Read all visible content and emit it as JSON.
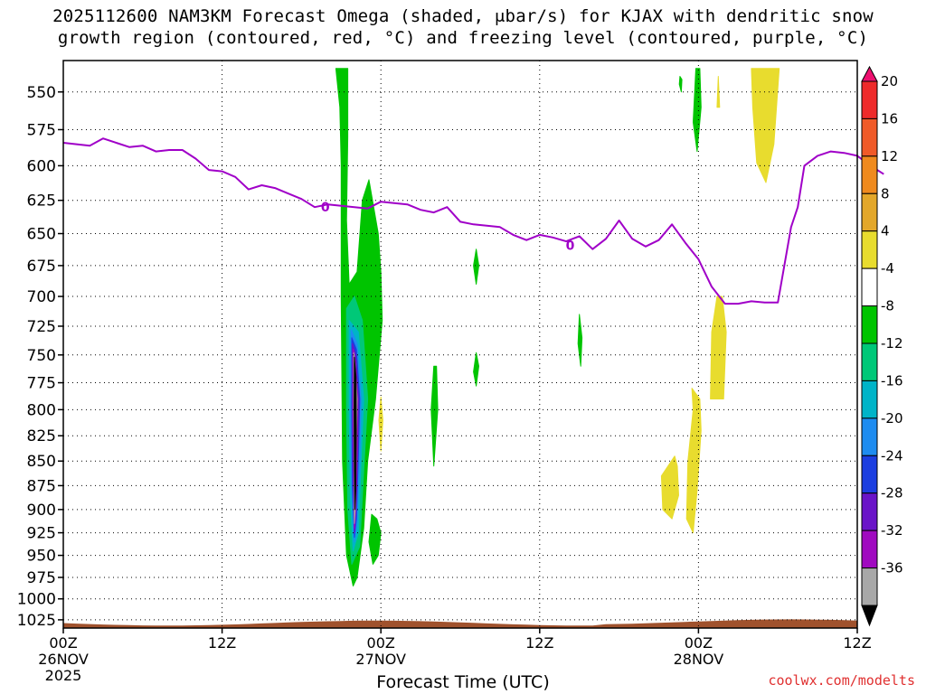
{
  "title_line1": "2025112600 NAM3KM Forecast Omega (shaded, μbar/s) for KJAX with dendritic snow",
  "title_line2": "growth region (contoured, red, °C) and freezing level (contoured, purple, °C)",
  "credit": "coolwx.com/modelts",
  "chart_data": {
    "type": "heatmap",
    "xlabel": "Forecast Time (UTC)",
    "ylabel": "",
    "x_range_hours": [
      0,
      60
    ],
    "y_range_hpa": [
      530,
      1035
    ],
    "y_scale": "log-pressure (inverted)",
    "grid": true,
    "y_ticks": [
      550,
      575,
      600,
      625,
      650,
      675,
      700,
      725,
      750,
      775,
      800,
      825,
      850,
      875,
      900,
      925,
      950,
      975,
      1000,
      1025
    ],
    "x_ticks": [
      {
        "hour": 0,
        "lines": [
          "00Z",
          "26NOV",
          "2025"
        ]
      },
      {
        "hour": 12,
        "lines": [
          "12Z"
        ]
      },
      {
        "hour": 24,
        "lines": [
          "00Z",
          "27NOV"
        ]
      },
      {
        "hour": 36,
        "lines": [
          "12Z"
        ]
      },
      {
        "hour": 48,
        "lines": [
          "00Z",
          "28NOV"
        ]
      },
      {
        "hour": 60,
        "lines": [
          "12Z"
        ]
      }
    ],
    "colorbar": {
      "labels": [
        "20",
        "16",
        "12",
        "8",
        "4",
        "-4",
        "-8",
        "-12",
        "-16",
        "-20",
        "-24",
        "-28",
        "-32",
        "-36"
      ],
      "colors": [
        "#ee1070",
        "#ee2a2a",
        "#f05a28",
        "#ef8a1e",
        "#e3a72a",
        "#e8dc2e",
        "#ffffff",
        "#00c400",
        "#00c878",
        "#00b4c8",
        "#1e8cf0",
        "#1c3ee0",
        "#6a14c8",
        "#a00ac0",
        "#a8a8a8",
        "#000000"
      ]
    },
    "freezing_level": {
      "label": "0",
      "color": "#a000c8",
      "points": [
        [
          0,
          584
        ],
        [
          1,
          585
        ],
        [
          2,
          586
        ],
        [
          3,
          581
        ],
        [
          4,
          584
        ],
        [
          5,
          587
        ],
        [
          6,
          586
        ],
        [
          7,
          590
        ],
        [
          8,
          589
        ],
        [
          9,
          589
        ],
        [
          10,
          595
        ],
        [
          11,
          603
        ],
        [
          12,
          604
        ],
        [
          13,
          608
        ],
        [
          14,
          617
        ],
        [
          15,
          614
        ],
        [
          16,
          616
        ],
        [
          17,
          620
        ],
        [
          18,
          624
        ],
        [
          19,
          630
        ],
        [
          20,
          628
        ],
        [
          21,
          629
        ],
        [
          22,
          630
        ],
        [
          23,
          631
        ],
        [
          24,
          626
        ],
        [
          25,
          627
        ],
        [
          26,
          628
        ],
        [
          27,
          632
        ],
        [
          28,
          634
        ],
        [
          29,
          630
        ],
        [
          30,
          641
        ],
        [
          31,
          643
        ],
        [
          32,
          644
        ],
        [
          33,
          645
        ],
        [
          34,
          651
        ],
        [
          35,
          655
        ],
        [
          36,
          651
        ],
        [
          37,
          653
        ],
        [
          38,
          656
        ],
        [
          39,
          652
        ],
        [
          40,
          662
        ],
        [
          41,
          654
        ],
        [
          42,
          640
        ],
        [
          43,
          654
        ],
        [
          44,
          660
        ],
        [
          45,
          655
        ],
        [
          46,
          643
        ],
        [
          47,
          657
        ],
        [
          48,
          670
        ],
        [
          49,
          692
        ],
        [
          50,
          706
        ],
        [
          51,
          706
        ],
        [
          52,
          704
        ],
        [
          53,
          705
        ],
        [
          54,
          705
        ],
        [
          55,
          645
        ],
        [
          55.5,
          630
        ],
        [
          56,
          600
        ],
        [
          57,
          593
        ],
        [
          58,
          590
        ],
        [
          59,
          591
        ],
        [
          60,
          593
        ],
        [
          61,
          600
        ],
        [
          62,
          606
        ]
      ]
    },
    "features": [
      {
        "kind": "omega",
        "value": -8,
        "color": "#00c400",
        "points": [
          [
            20.6,
            535
          ],
          [
            20.9,
            560
          ],
          [
            21.0,
            600
          ],
          [
            21.0,
            660
          ],
          [
            21.0,
            700
          ],
          [
            21.1,
            850
          ],
          [
            21.4,
            950
          ],
          [
            21.9,
            985
          ],
          [
            22.2,
            975
          ],
          [
            22.7,
            920
          ],
          [
            23.0,
            850
          ],
          [
            23.6,
            790
          ],
          [
            24.1,
            720
          ],
          [
            24.0,
            680
          ],
          [
            23.8,
            650
          ],
          [
            23.1,
            610
          ],
          [
            22.6,
            625
          ],
          [
            22.2,
            680
          ],
          [
            21.6,
            690
          ],
          [
            21.4,
            640
          ],
          [
            21.5,
            580
          ],
          [
            21.5,
            535
          ]
        ]
      },
      {
        "kind": "omega",
        "value": -12,
        "color": "#00c878",
        "points": [
          [
            21.4,
            710
          ],
          [
            21.4,
            800
          ],
          [
            21.5,
            900
          ],
          [
            21.8,
            960
          ],
          [
            22.4,
            940
          ],
          [
            22.7,
            860
          ],
          [
            23.0,
            790
          ],
          [
            22.6,
            720
          ],
          [
            22.0,
            700
          ]
        ]
      },
      {
        "kind": "omega",
        "value": -16,
        "color": "#00b4c8",
        "points": [
          [
            21.6,
            720
          ],
          [
            21.6,
            800
          ],
          [
            21.7,
            890
          ],
          [
            21.9,
            945
          ],
          [
            22.3,
            925
          ],
          [
            22.5,
            850
          ],
          [
            22.7,
            790
          ],
          [
            22.3,
            730
          ]
        ]
      },
      {
        "kind": "omega",
        "value": -20,
        "color": "#1e8cf0",
        "points": [
          [
            21.75,
            728
          ],
          [
            21.7,
            800
          ],
          [
            21.8,
            880
          ],
          [
            22.0,
            935
          ],
          [
            22.2,
            915
          ],
          [
            22.4,
            850
          ],
          [
            22.5,
            790
          ],
          [
            22.2,
            740
          ]
        ]
      },
      {
        "kind": "omega",
        "value": -24,
        "color": "#1c3ee0",
        "points": [
          [
            21.8,
            735
          ],
          [
            21.8,
            800
          ],
          [
            21.85,
            875
          ],
          [
            22.0,
            930
          ],
          [
            22.15,
            910
          ],
          [
            22.3,
            845
          ],
          [
            22.4,
            790
          ],
          [
            22.15,
            745
          ]
        ]
      },
      {
        "kind": "omega",
        "value": -28,
        "color": "#6a14c8",
        "points": [
          [
            21.85,
            740
          ],
          [
            21.85,
            800
          ],
          [
            21.9,
            870
          ],
          [
            22.0,
            925
          ],
          [
            22.1,
            905
          ],
          [
            22.25,
            840
          ],
          [
            22.3,
            790
          ],
          [
            22.1,
            750
          ]
        ]
      },
      {
        "kind": "omega",
        "value": -32,
        "color": "#a00ac0",
        "points": [
          [
            21.9,
            745
          ],
          [
            21.9,
            800
          ],
          [
            21.95,
            865
          ],
          [
            22.0,
            920
          ],
          [
            22.1,
            900
          ],
          [
            22.2,
            835
          ],
          [
            22.25,
            790
          ],
          [
            22.05,
            755
          ]
        ]
      },
      {
        "kind": "omega",
        "value": -36,
        "color": "#a8a8a8",
        "points": [
          [
            21.95,
            748
          ],
          [
            21.95,
            800
          ],
          [
            21.98,
            860
          ],
          [
            22.0,
            915
          ],
          [
            22.08,
            895
          ],
          [
            22.15,
            830
          ],
          [
            22.2,
            790
          ],
          [
            22.05,
            758
          ]
        ]
      },
      {
        "kind": "omega",
        "value": -40,
        "color": "#000000",
        "points": [
          [
            22.0,
            752
          ],
          [
            21.98,
            800
          ],
          [
            22.0,
            860
          ],
          [
            22.04,
            900
          ],
          [
            22.1,
            880
          ],
          [
            22.14,
            820
          ],
          [
            22.12,
            770
          ]
        ]
      },
      {
        "kind": "omega",
        "value": -8,
        "color": "#00c400",
        "points": [
          [
            23.3,
            905
          ],
          [
            23.1,
            935
          ],
          [
            23.4,
            960
          ],
          [
            23.8,
            950
          ],
          [
            24.0,
            925
          ],
          [
            23.7,
            910
          ]
        ]
      },
      {
        "kind": "omega",
        "value": 4,
        "color": "#e8dc2e",
        "points": [
          [
            24.0,
            788
          ],
          [
            23.85,
            810
          ],
          [
            24.0,
            840
          ],
          [
            24.15,
            810
          ]
        ]
      },
      {
        "kind": "omega",
        "value": -8,
        "color": "#00c400",
        "points": [
          [
            28.0,
            760
          ],
          [
            27.8,
            800
          ],
          [
            28.0,
            855
          ],
          [
            28.3,
            800
          ],
          [
            28.2,
            760
          ]
        ]
      },
      {
        "kind": "omega",
        "value": -8,
        "color": "#00c400",
        "points": [
          [
            31.2,
            662
          ],
          [
            31.0,
            675
          ],
          [
            31.2,
            690
          ],
          [
            31.4,
            675
          ]
        ]
      },
      {
        "kind": "omega",
        "value": -8,
        "color": "#00c400",
        "points": [
          [
            31.2,
            748
          ],
          [
            31.0,
            765
          ],
          [
            31.2,
            778
          ],
          [
            31.4,
            760
          ]
        ]
      },
      {
        "kind": "omega",
        "value": -8,
        "color": "#00c400",
        "points": [
          [
            39.0,
            715
          ],
          [
            38.9,
            740
          ],
          [
            39.1,
            760
          ],
          [
            39.2,
            735
          ]
        ]
      },
      {
        "kind": "omega",
        "value": -8,
        "color": "#00c400",
        "points": [
          [
            46.6,
            540
          ],
          [
            46.55,
            545
          ],
          [
            46.7,
            550
          ],
          [
            46.75,
            542
          ]
        ]
      },
      {
        "kind": "omega",
        "value": -8,
        "color": "#00c400",
        "points": [
          [
            47.8,
            535
          ],
          [
            47.6,
            570
          ],
          [
            47.9,
            590
          ],
          [
            48.2,
            560
          ],
          [
            48.1,
            535
          ]
        ]
      },
      {
        "kind": "omega",
        "value": 4,
        "color": "#e8dc2e",
        "points": [
          [
            49.5,
            540
          ],
          [
            49.4,
            560
          ],
          [
            49.6,
            560
          ]
        ]
      },
      {
        "kind": "omega",
        "value": 4,
        "color": "#e8dc2e",
        "points": [
          [
            52.0,
            535
          ],
          [
            52.1,
            560
          ],
          [
            52.4,
            598
          ],
          [
            53.1,
            612
          ],
          [
            53.7,
            585
          ],
          [
            54.1,
            535
          ]
        ]
      },
      {
        "kind": "omega",
        "value": 4,
        "color": "#e8dc2e",
        "points": [
          [
            49.4,
            700
          ],
          [
            49.0,
            730
          ],
          [
            48.9,
            790
          ],
          [
            49.9,
            790
          ],
          [
            50.1,
            730
          ],
          [
            49.8,
            700
          ]
        ]
      },
      {
        "kind": "omega",
        "value": 4,
        "color": "#e8dc2e",
        "points": [
          [
            47.5,
            780
          ],
          [
            47.6,
            800
          ],
          [
            47.2,
            850
          ],
          [
            47.1,
            910
          ],
          [
            47.6,
            925
          ],
          [
            47.9,
            880
          ],
          [
            48.2,
            820
          ],
          [
            48.1,
            790
          ]
        ]
      },
      {
        "kind": "omega",
        "value": 4,
        "color": "#e8dc2e",
        "points": [
          [
            46.2,
            845
          ],
          [
            45.2,
            865
          ],
          [
            45.3,
            900
          ],
          [
            46.0,
            910
          ],
          [
            46.5,
            885
          ],
          [
            46.4,
            855
          ]
        ]
      }
    ]
  }
}
